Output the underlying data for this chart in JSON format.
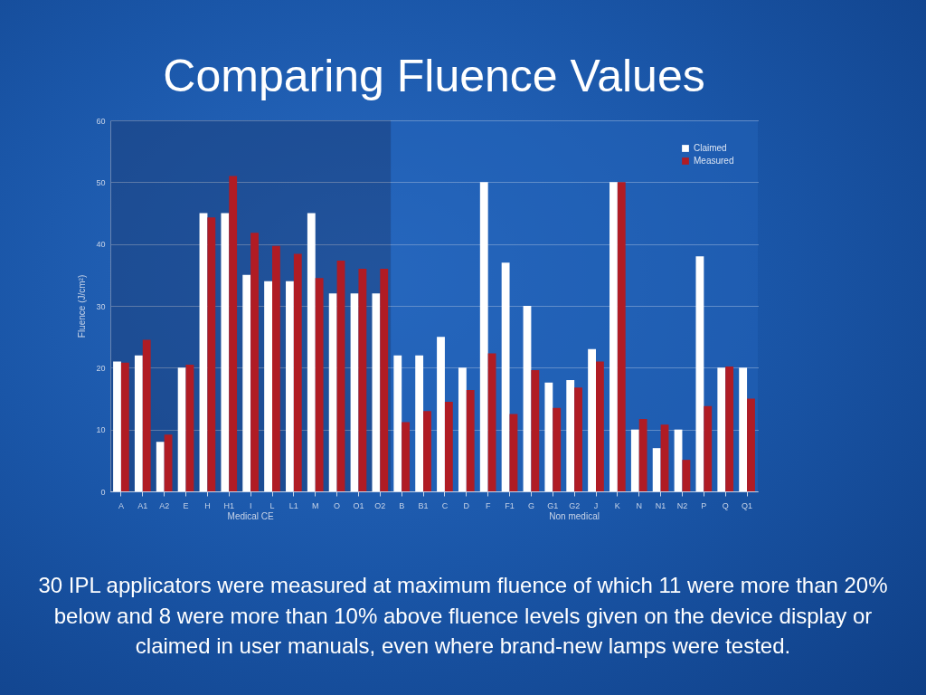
{
  "chart_data": {
    "type": "bar",
    "title": "Comparing Fluence Values",
    "ylabel": "Fluence (J/cm²)",
    "categories": [
      "A",
      "A1",
      "A2",
      "E",
      "H",
      "H1",
      "I",
      "L",
      "L1",
      "M",
      "O",
      "O1",
      "O2",
      "B",
      "B1",
      "C",
      "D",
      "F",
      "F1",
      "G",
      "G1",
      "G2",
      "J",
      "K",
      "N",
      "N1",
      "N2",
      "P",
      "Q",
      "Q1"
    ],
    "series": [
      {
        "name": "Claimed",
        "color": "#ffffff",
        "values": [
          21,
          22,
          8,
          20,
          45,
          45,
          35,
          34,
          34,
          45,
          32,
          32,
          32,
          22,
          22,
          25,
          20,
          50,
          37,
          30,
          17.6,
          18,
          23,
          50,
          10,
          7,
          10,
          38,
          20,
          20
        ]
      },
      {
        "name": "Measured",
        "color": "#b01c24",
        "values": [
          20.8,
          24.5,
          9.2,
          20.5,
          44.3,
          51,
          41.8,
          39.7,
          38.4,
          34.5,
          37.3,
          36,
          36,
          11.2,
          13,
          14.5,
          16.4,
          22.3,
          12.5,
          19.6,
          13.5,
          16.8,
          21,
          50,
          11.7,
          10.8,
          5.1,
          13.8,
          20.2,
          15
        ]
      }
    ],
    "ylim": [
      0,
      60
    ],
    "yticks": [
      0,
      10,
      20,
      30,
      40,
      50,
      60
    ],
    "grid": "y",
    "legend": "top right",
    "bands": [
      {
        "axis": "x",
        "from": "A",
        "to": "O2",
        "label": "Medical CE",
        "color": "#1c3f7c"
      },
      {
        "axis": "x",
        "from": "B",
        "to": "Q1",
        "label": "Non medical",
        "color": "#2262b8"
      }
    ],
    "annotations": [
      "30 IPL applicators were measured at maximum fluence of which 11 were more than 20% below and 8 were more than 10% above fluence levels given on the device display or claimed in user manuals, even where brand-new lamps were tested."
    ]
  }
}
